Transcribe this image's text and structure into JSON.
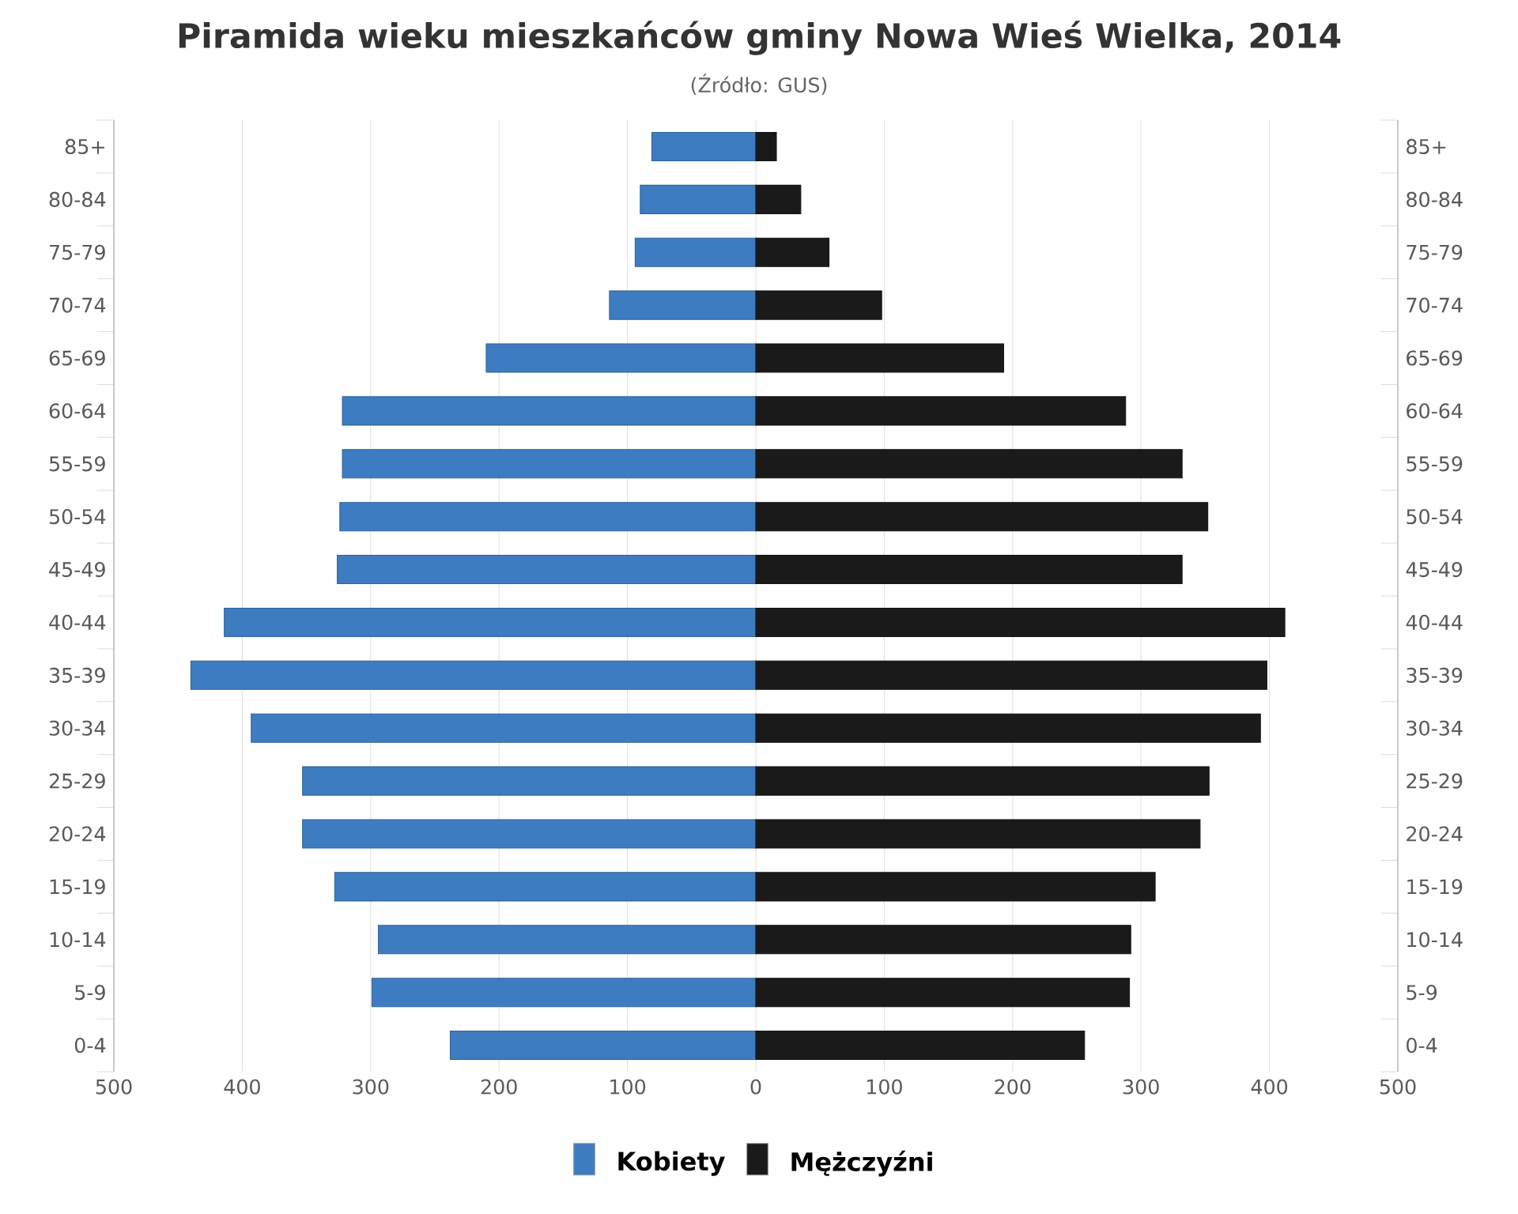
{
  "chart_data": {
    "type": "bar",
    "orientation": "horizontal",
    "title": "Piramida wieku mieszkańców gminy Nowa Wieś Wielka, 2014",
    "subtitle": "(Źródło: GUS)",
    "categories": [
      "85+",
      "80-84",
      "75-79",
      "70-74",
      "65-69",
      "60-64",
      "55-59",
      "50-54",
      "45-49",
      "40-44",
      "35-39",
      "30-34",
      "25-29",
      "20-24",
      "15-19",
      "10-14",
      "5-9",
      "0-4"
    ],
    "series": [
      {
        "name": "Kobiety",
        "color": "#3d7cc0",
        "values": [
          -81,
          -90,
          -94,
          -114,
          -210,
          -322,
          -322,
          -324,
          -326,
          -414,
          -440,
          -393,
          -353,
          -353,
          -328,
          -294,
          -299,
          -238
        ]
      },
      {
        "name": "Mężczyźni",
        "color": "#1a1a1a",
        "values": [
          16,
          35,
          57,
          98,
          193,
          288,
          332,
          352,
          332,
          412,
          398,
          393,
          353,
          346,
          311,
          292,
          291,
          256
        ]
      }
    ],
    "xlim": [
      -500,
      500
    ],
    "xticks": [
      {
        "value": -500,
        "label": "500"
      },
      {
        "value": -400,
        "label": "400"
      },
      {
        "value": -300,
        "label": "300"
      },
      {
        "value": -200,
        "label": "200"
      },
      {
        "value": -100,
        "label": "100"
      },
      0,
      100,
      200,
      300,
      400,
      500
    ],
    "stacked": true,
    "grid": "x",
    "legend": "bottom"
  }
}
